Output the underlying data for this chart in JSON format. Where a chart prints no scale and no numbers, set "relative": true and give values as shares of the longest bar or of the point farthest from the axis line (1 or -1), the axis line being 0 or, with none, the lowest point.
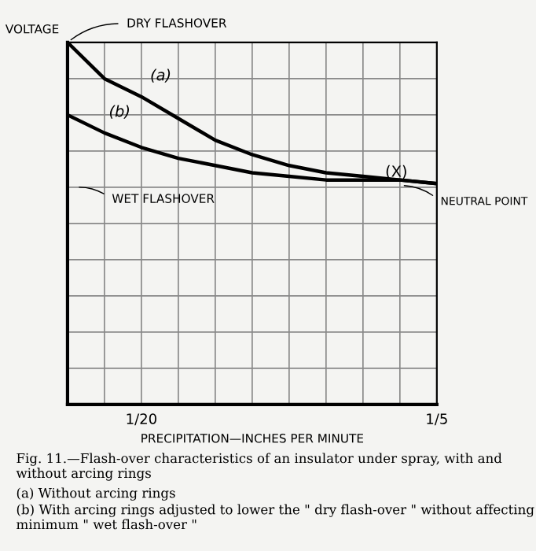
{
  "chart_data": {
    "type": "line",
    "relative": true,
    "xlabel": "PRECIPITATION—INCHES PER MINUTE",
    "ylabel": "VOLTAGE",
    "categories": [
      null,
      null,
      "1/20",
      null,
      null,
      null,
      null,
      null,
      null,
      null,
      "1/5"
    ],
    "grid": true,
    "marker": "none",
    "line_style": "solid",
    "series": [
      {
        "name": "(a)",
        "color": "#000000",
        "values": [
          1.0,
          0.9,
          0.85,
          0.79,
          0.73,
          0.69,
          0.66,
          0.64,
          0.63,
          0.62,
          0.61
        ]
      },
      {
        "name": "(b)",
        "color": "#000000",
        "values": [
          0.8,
          0.75,
          0.71,
          0.68,
          0.66,
          0.64,
          0.63,
          0.62,
          0.62,
          0.62,
          0.61
        ]
      }
    ],
    "annotations": [
      "DRY FLASHOVER",
      "WET FLASHOVER",
      "(X)",
      "NEUTRAL POINT",
      "Fig. 11.—Flash-over characteristics of an insulator under spray, with and without arcing rings",
      "(a) Without arcing rings",
      "(b) With arcing rings adjusted to lower the \" dry flash-over \" without affecting minimum \" wet flash-over \""
    ]
  }
}
